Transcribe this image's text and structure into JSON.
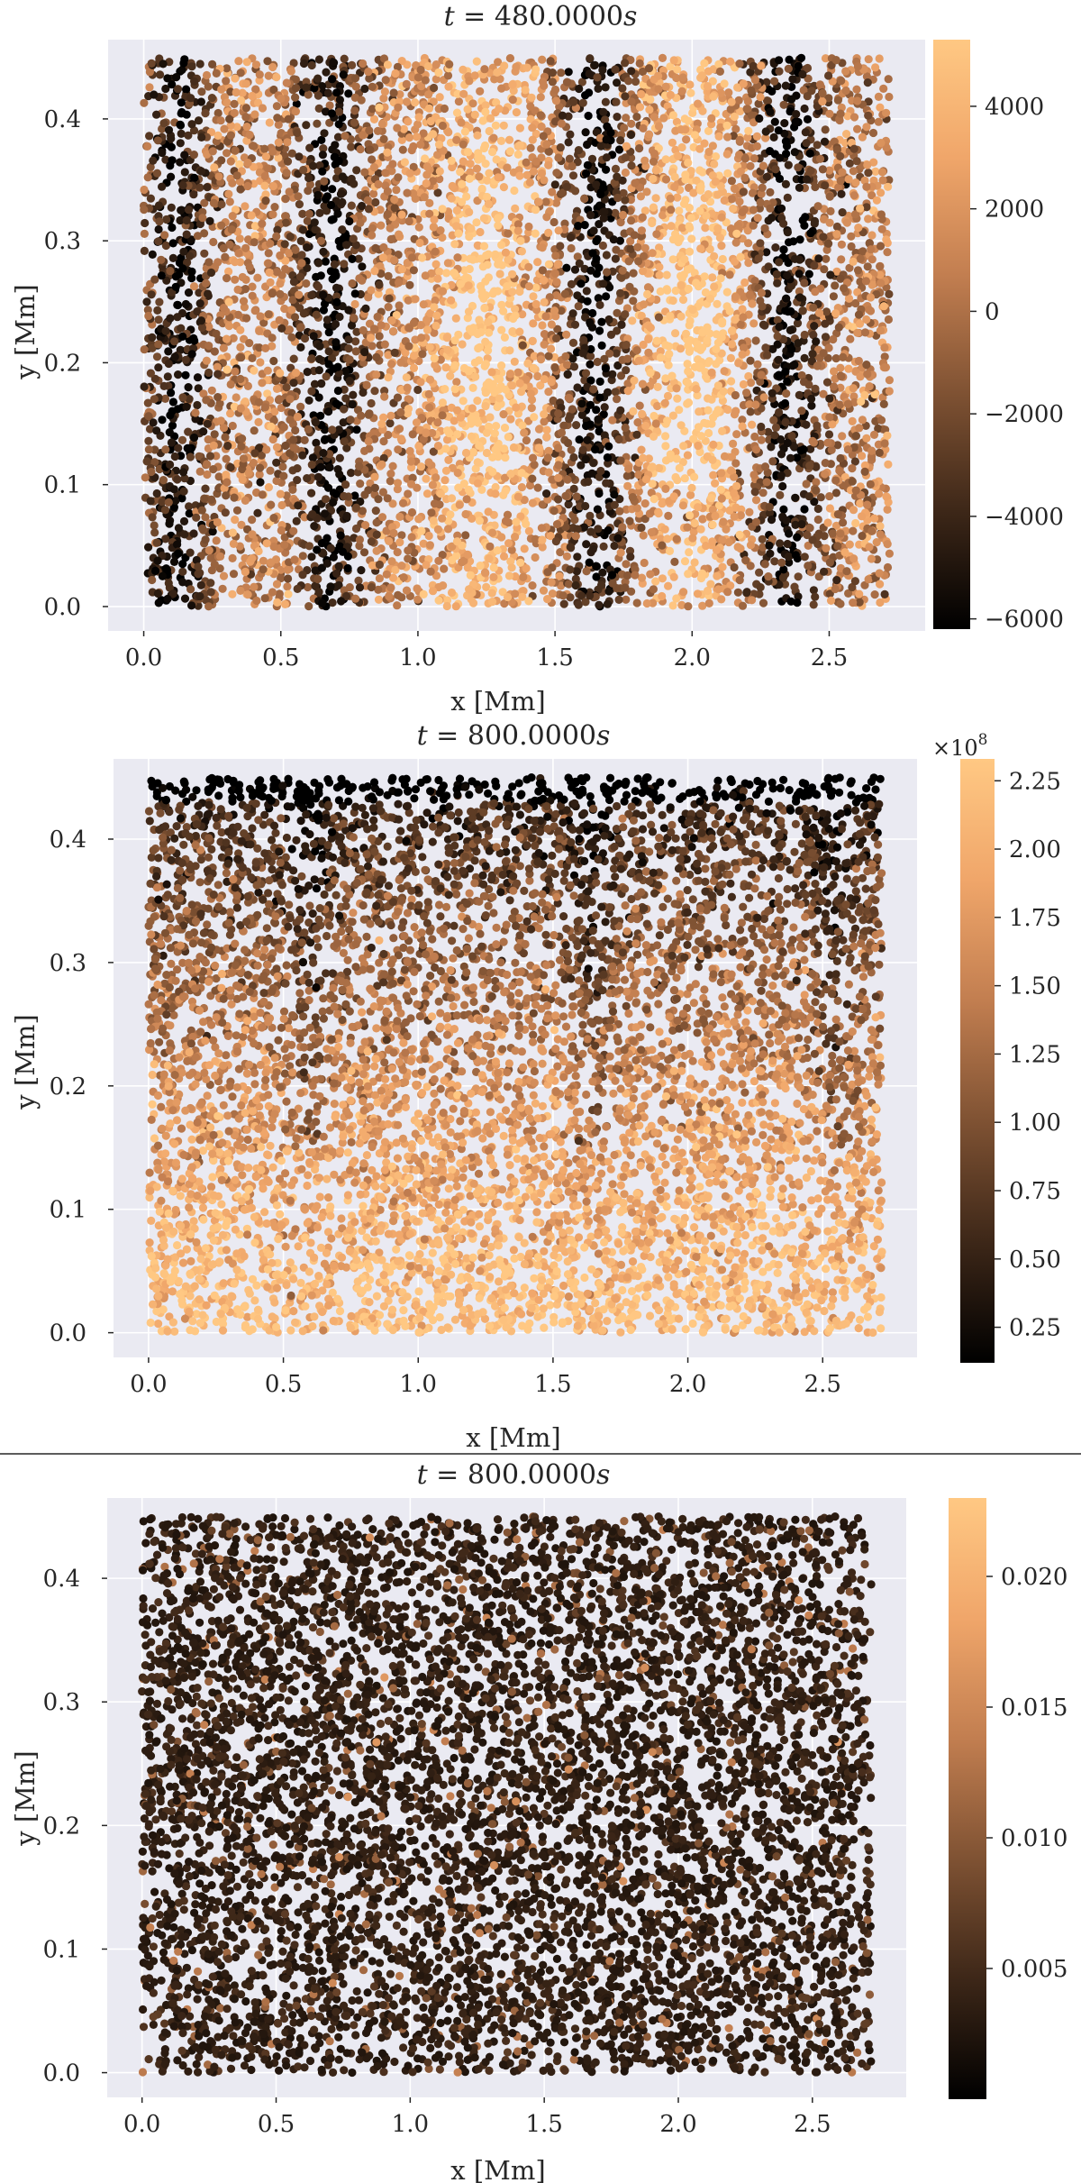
{
  "colormap": {
    "name": "copper",
    "stops": [
      "#000000",
      "#3d2718",
      "#7f5233",
      "#c27e50",
      "#f0a66a",
      "#ffc883"
    ]
  },
  "chart_data": [
    {
      "type": "scatter",
      "title_var": "t",
      "title_value": "480.0000",
      "title_unit": "s",
      "xlabel": "x [Mm]",
      "ylabel": "y [Mm]",
      "xlim": [
        -0.13,
        2.85
      ],
      "ylim": [
        -0.02,
        0.465
      ],
      "xticks": [
        0.0,
        0.5,
        1.0,
        1.5,
        2.0,
        2.5
      ],
      "xtick_labels": [
        "0.0",
        "0.5",
        "1.0",
        "1.5",
        "2.0",
        "2.5"
      ],
      "yticks": [
        0.0,
        0.1,
        0.2,
        0.3,
        0.4
      ],
      "ytick_labels": [
        "0.0",
        "0.1",
        "0.2",
        "0.3",
        "0.4"
      ],
      "grid": true,
      "x_range": [
        0.0,
        2.72
      ],
      "y_range": [
        0.0,
        0.45
      ],
      "n_points": 7000,
      "field": "stripes",
      "stripes": {
        "dark_centers": [
          0.12,
          0.68,
          1.65,
          2.35
        ],
        "dark_width": 0.12,
        "bright_centers": [
          1.25,
          2.0
        ],
        "bright_width": 0.18
      },
      "colorbar": {
        "min": -6200,
        "max": 5300,
        "ticks": [
          -6000,
          -4000,
          -2000,
          0,
          2000,
          4000
        ],
        "tick_labels": [
          "−6000",
          "−4000",
          "−2000",
          "0",
          "2000",
          "4000"
        ],
        "exponent": ""
      }
    },
    {
      "type": "scatter",
      "title_var": "t",
      "title_value": "800.0000",
      "title_unit": "s",
      "xlabel": "x [Mm]",
      "ylabel": "y [Mm]",
      "xlim": [
        -0.13,
        2.85
      ],
      "ylim": [
        -0.02,
        0.465
      ],
      "xticks": [
        0.0,
        0.5,
        1.0,
        1.5,
        2.0,
        2.5
      ],
      "xtick_labels": [
        "0.0",
        "0.5",
        "1.0",
        "1.5",
        "2.0",
        "2.5"
      ],
      "yticks": [
        0.0,
        0.1,
        0.2,
        0.3,
        0.4
      ],
      "ytick_labels": [
        "0.0",
        "0.1",
        "0.2",
        "0.3",
        "0.4"
      ],
      "grid": true,
      "x_range": [
        0.0,
        2.72
      ],
      "y_range": [
        0.0,
        0.45
      ],
      "n_points": 7000,
      "field": "gradient",
      "stripes": {
        "dark_centers": [
          0.6,
          1.65,
          2.55
        ],
        "dark_width": 0.08
      },
      "colorbar": {
        "min": 0.12,
        "max": 2.33,
        "ticks": [
          0.25,
          0.5,
          0.75,
          1.0,
          1.25,
          1.5,
          1.75,
          2.0,
          2.25
        ],
        "tick_labels": [
          "0.25",
          "0.50",
          "0.75",
          "1.00",
          "1.25",
          "1.50",
          "1.75",
          "2.00",
          "2.25"
        ],
        "exponent_base": "×10",
        "exponent_power": "8"
      }
    },
    {
      "type": "scatter",
      "title_var": "t",
      "title_value": "800.0000",
      "title_unit": "s",
      "xlabel": "x [Mm]",
      "ylabel": "y [Mm]",
      "xlim": [
        -0.13,
        2.85
      ],
      "ylim": [
        -0.02,
        0.465
      ],
      "xticks": [
        0.0,
        0.5,
        1.0,
        1.5,
        2.0,
        2.5
      ],
      "xtick_labels": [
        "0.0",
        "0.5",
        "1.0",
        "1.5",
        "2.0",
        "2.5"
      ],
      "yticks": [
        0.0,
        0.1,
        0.2,
        0.3,
        0.4
      ],
      "ytick_labels": [
        "0.0",
        "0.1",
        "0.2",
        "0.3",
        "0.4"
      ],
      "grid": true,
      "x_range": [
        0.0,
        2.72
      ],
      "y_range": [
        0.0,
        0.45
      ],
      "n_points": 7000,
      "field": "noise",
      "colorbar": {
        "min": 0.0,
        "max": 0.023,
        "ticks": [
          0.005,
          0.01,
          0.015,
          0.02
        ],
        "tick_labels": [
          "0.005",
          "0.010",
          "0.015",
          "0.020"
        ],
        "exponent": ""
      }
    }
  ]
}
